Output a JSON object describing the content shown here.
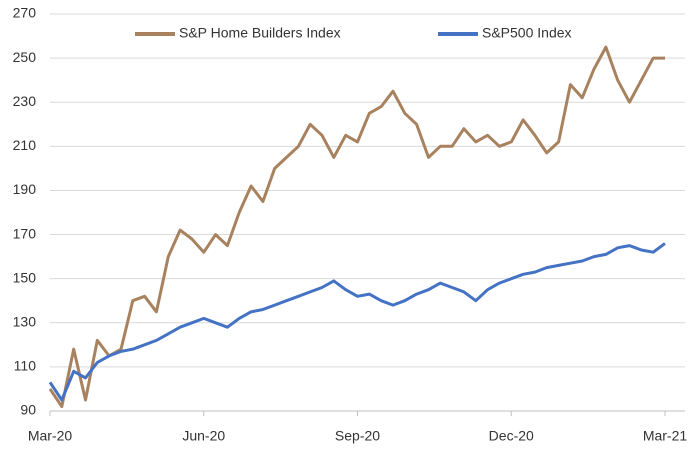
{
  "chart_data": {
    "type": "line",
    "categories": [
      "Mar-20",
      null,
      null,
      null,
      null,
      null,
      null,
      null,
      null,
      null,
      null,
      null,
      null,
      "Jun-20",
      null,
      null,
      null,
      null,
      null,
      null,
      null,
      null,
      null,
      null,
      null,
      null,
      "Sep-20",
      null,
      null,
      null,
      null,
      null,
      null,
      null,
      null,
      null,
      null,
      null,
      null,
      "Dec-20",
      null,
      null,
      null,
      null,
      null,
      null,
      null,
      null,
      null,
      null,
      null,
      null,
      "Mar-21"
    ],
    "series": [
      {
        "name": "S&P Home Builders Index",
        "color": "#a8825f",
        "values": [
          100,
          92,
          118,
          95,
          122,
          115,
          118,
          140,
          142,
          135,
          160,
          172,
          168,
          162,
          170,
          165,
          180,
          192,
          185,
          200,
          205,
          210,
          220,
          215,
          205,
          215,
          212,
          225,
          228,
          235,
          225,
          220,
          205,
          210,
          210,
          218,
          212,
          215,
          210,
          212,
          222,
          215,
          207,
          212,
          238,
          232,
          245,
          255,
          240,
          230,
          240,
          250,
          250
        ]
      },
      {
        "name": "S&P500 Index",
        "color": "#4472c4",
        "values": [
          103,
          95,
          108,
          105,
          112,
          115,
          117,
          118,
          120,
          122,
          125,
          128,
          130,
          132,
          130,
          128,
          132,
          135,
          136,
          138,
          140,
          142,
          144,
          146,
          149,
          145,
          142,
          143,
          140,
          138,
          140,
          143,
          145,
          148,
          146,
          144,
          140,
          145,
          148,
          150,
          152,
          153,
          155,
          156,
          157,
          158,
          160,
          161,
          164,
          165,
          163,
          162,
          166
        ]
      }
    ],
    "ylim": [
      90,
      270
    ],
    "yticks": [
      90,
      110,
      130,
      150,
      170,
      190,
      210,
      230,
      250,
      270
    ],
    "grid": true,
    "legend": "top"
  }
}
